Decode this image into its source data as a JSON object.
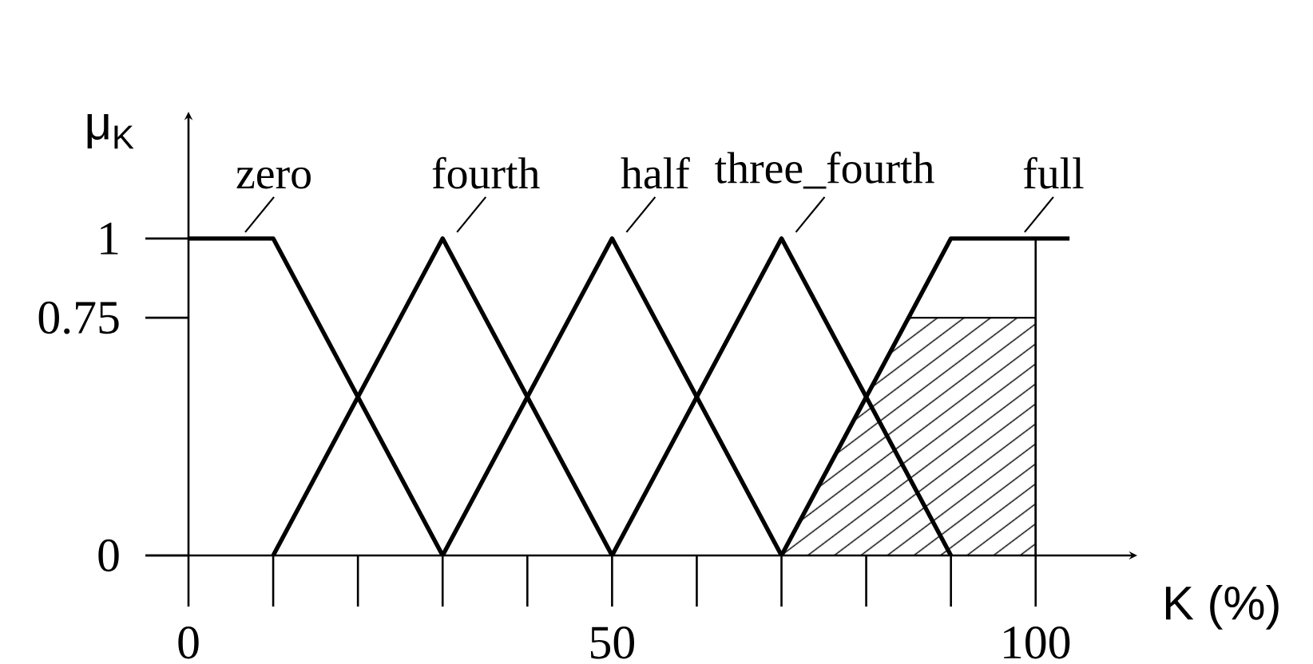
{
  "chart_data": {
    "type": "line",
    "xlabel": "K (%)",
    "ylabel": "μ$_{K}$",
    "xlim": [
      0,
      112
    ],
    "ylim": [
      0,
      1.4
    ],
    "xticks": [
      0,
      {
        "value": 10,
        "label": null
      },
      {
        "value": 20,
        "label": null
      },
      {
        "value": 30,
        "label": null
      },
      {
        "value": 40,
        "label": null
      },
      50,
      {
        "value": 60,
        "label": null
      },
      {
        "value": 70,
        "label": null
      },
      {
        "value": 80,
        "label": null
      },
      {
        "value": 90,
        "label": null
      },
      100
    ],
    "yticks": [
      0,
      0.75,
      1
    ],
    "grid": false,
    "legend": false,
    "marker": "none",
    "line_style": "solid",
    "series": [
      {
        "name": "zero",
        "color": "#000000",
        "x": [
          0,
          10,
          30
        ],
        "values": [
          1,
          1,
          0
        ]
      },
      {
        "name": "fourth",
        "color": "#000000",
        "x": [
          10,
          30,
          50
        ],
        "values": [
          0,
          1,
          0
        ]
      },
      {
        "name": "half",
        "color": "#000000",
        "x": [
          30,
          50,
          70
        ],
        "values": [
          0,
          1,
          0
        ]
      },
      {
        "name": "three_fourth",
        "color": "#000000",
        "x": [
          50,
          70,
          90
        ],
        "values": [
          0,
          1,
          0
        ]
      },
      {
        "name": "full",
        "color": "#000000",
        "x": [
          70,
          90,
          104
        ],
        "values": [
          0,
          1,
          1
        ]
      },
      {
        "type": "area",
        "color": "#000000",
        "x": [
          70,
          85,
          100
        ],
        "values": [
          0,
          0.75,
          0.75
        ]
      }
    ],
    "ref_lines": [
      {
        "axis": "x",
        "value": 100
      }
    ]
  }
}
